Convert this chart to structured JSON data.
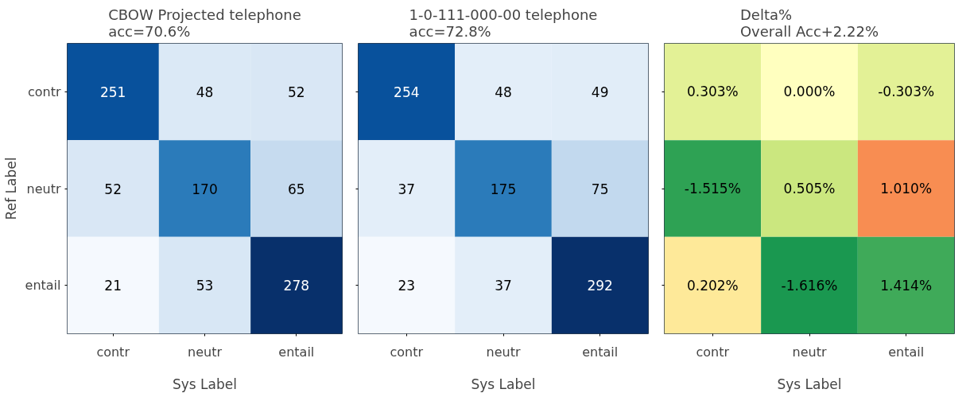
{
  "chart_data": [
    {
      "type": "heatmap",
      "title": "CBOW Projected telephone\nacc=70.6%",
      "xlabel": "Sys Label",
      "ylabel": "Ref Label",
      "categories": [
        "contr",
        "neutr",
        "entail"
      ],
      "y_categories": [
        "contr",
        "neutr",
        "entail"
      ],
      "data_labels": true,
      "cells": [
        [
          251,
          48,
          52
        ],
        [
          52,
          170,
          65
        ],
        [
          21,
          53,
          278
        ]
      ],
      "colors": [
        [
          "#08519c",
          "#dbe9f6",
          "#d9e7f5"
        ],
        [
          "#d9e7f5",
          "#2b7bba",
          "#c6dbef"
        ],
        [
          "#f5f9fe",
          "#d8e7f5",
          "#08306b"
        ]
      ]
    },
    {
      "type": "heatmap",
      "title": "1-0-111-000-00 telephone\nacc=72.8%",
      "xlabel": "Sys Label",
      "categories": [
        "contr",
        "neutr",
        "entail"
      ],
      "y_categories": [
        null,
        null,
        null
      ],
      "data_labels": true,
      "tick_labels": "x",
      "cells": [
        [
          254,
          48,
          49
        ],
        [
          37,
          175,
          75
        ],
        [
          23,
          37,
          292
        ]
      ],
      "colors": [
        [
          "#08519c",
          "#e3eef9",
          "#e1edf8"
        ],
        [
          "#e3eef9",
          "#2b7bba",
          "#c2d9ee"
        ],
        [
          "#f5f9fe",
          "#e3eef9",
          "#08306b"
        ]
      ]
    },
    {
      "type": "heatmap",
      "title": "Delta%\nOverall Acc+2.22%",
      "xlabel": "Sys Label",
      "categories": [
        "contr",
        "neutr",
        "entail"
      ],
      "y_categories": [
        null,
        null,
        null
      ],
      "tick_labels": "x",
      "cells": [
        [
          0.303,
          0.0,
          -0.303
        ],
        [
          -1.515,
          0.505,
          1.01
        ],
        [
          0.202,
          -1.616,
          1.414
        ]
      ],
      "cell_labels": [
        [
          "0.303%",
          "0.000%",
          "-0.303%"
        ],
        [
          "-1.515%",
          "0.505%",
          "1.010%"
        ],
        [
          "0.202%",
          "-1.616%",
          "1.414%"
        ]
      ],
      "colors": [
        [
          "#e3f196",
          "#ffffbf",
          "#e3f196"
        ],
        [
          "#2ea254",
          "#cbe77f",
          "#f88d52"
        ],
        [
          "#fee999",
          "#1a9850",
          "#3faa59"
        ]
      ]
    }
  ]
}
